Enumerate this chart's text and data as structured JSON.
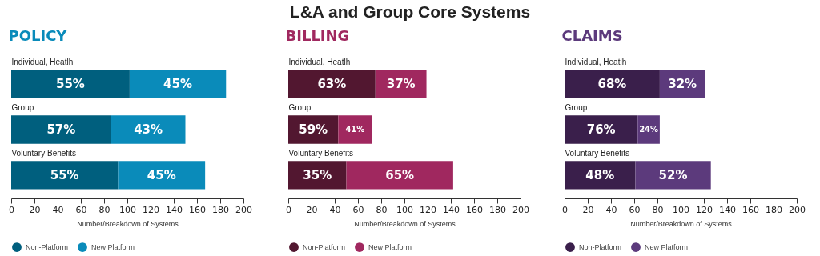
{
  "chart_data": [
    {
      "type": "bar",
      "orientation": "horizontal",
      "stacked": true,
      "title": "POLICY",
      "categories": [
        "Individual, Heatlh",
        "Group",
        "Voluntary Benefits"
      ],
      "xlabel": "Number/Breakdown of Systems",
      "xlim": [
        0,
        200
      ],
      "xticks": [
        0,
        20,
        40,
        60,
        80,
        100,
        120,
        140,
        160,
        180,
        200
      ],
      "legend": "bottom",
      "grid": false,
      "annotations": [
        "L&A and Group Core Systems",
        "55%",
        "45%",
        "57%",
        "43%",
        "55%",
        "45%"
      ],
      "series": [
        {
          "name": "Non-Platform",
          "color": "#005f7e",
          "values": [
            102,
            86,
            92
          ]
        },
        {
          "name": "New Platform",
          "color": "#0a8bba",
          "values": [
            83,
            64,
            75
          ]
        }
      ]
    },
    {
      "type": "bar",
      "orientation": "horizontal",
      "stacked": true,
      "title": "BILLING",
      "categories": [
        "Individual, Heatlh",
        "Group",
        "Voluntary Benefits"
      ],
      "xlabel": "Number/Breakdown of Systems",
      "xlim": [
        0,
        200
      ],
      "xticks": [
        0,
        20,
        40,
        60,
        80,
        100,
        120,
        140,
        160,
        180,
        200
      ],
      "legend": "bottom",
      "grid": false,
      "annotations": [
        "63%",
        "37%",
        "59%",
        "41%",
        "35%",
        "65%"
      ],
      "series": [
        {
          "name": "Non-Platform",
          "color": "#521730",
          "values": [
            75,
            43,
            50
          ]
        },
        {
          "name": "New Platform",
          "color": "#a0285f",
          "values": [
            44,
            29,
            92
          ]
        }
      ]
    },
    {
      "type": "bar",
      "orientation": "horizontal",
      "stacked": true,
      "title": "CLAIMS",
      "categories": [
        "Individual, Heatlh",
        "Group",
        "Voluntary Benefits"
      ],
      "xlabel": "Number/Breakdown of Systems",
      "xlim": [
        0,
        200
      ],
      "xticks": [
        0,
        20,
        40,
        60,
        80,
        100,
        120,
        140,
        160,
        180,
        200
      ],
      "legend": "bottom",
      "grid": false,
      "annotations": [
        "68%",
        "32%",
        "76%",
        "24%",
        "48%",
        "52%"
      ],
      "series": [
        {
          "name": "Non-Platform",
          "color": "#3a1f4b",
          "values": [
            82,
            63,
            61
          ]
        },
        {
          "name": "New Platform",
          "color": "#5c3a7c",
          "values": [
            39,
            19,
            65
          ]
        }
      ]
    }
  ]
}
